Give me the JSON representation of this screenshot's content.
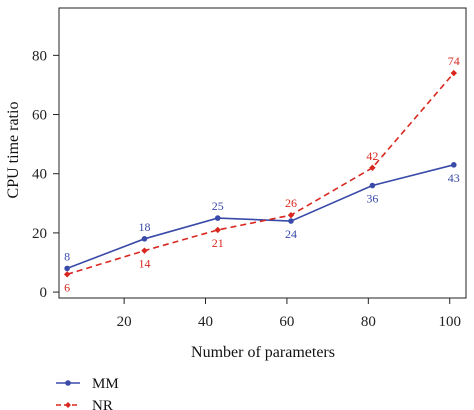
{
  "chart_data": {
    "type": "line",
    "xlabel": "Number of parameters",
    "ylabel": "CPU time ratio",
    "xlim": [
      4,
      104
    ],
    "ylim": [
      -2,
      96
    ],
    "xticks": [
      20,
      40,
      60,
      80,
      100
    ],
    "yticks": [
      0,
      20,
      40,
      60,
      80
    ],
    "x": [
      6,
      25,
      43,
      61,
      81,
      101
    ],
    "series": [
      {
        "name": "MM",
        "values": [
          8,
          18,
          25,
          24,
          36,
          43
        ],
        "labels": [
          "8",
          "18",
          "25",
          "24",
          "36",
          "43"
        ],
        "color": "#3a4aa8",
        "dash": "solid",
        "label_pos": [
          "above",
          "above",
          "above",
          "below",
          "below",
          "below"
        ]
      },
      {
        "name": "NR",
        "values": [
          6,
          14,
          21,
          26,
          42,
          74
        ],
        "labels": [
          "6",
          "14",
          "21",
          "26",
          "42",
          "74"
        ],
        "color": "#d9271f",
        "dash": "dashed",
        "label_pos": [
          "below",
          "below",
          "below",
          "above",
          "above",
          "above"
        ]
      }
    ],
    "legend_position": "bottom-left"
  }
}
